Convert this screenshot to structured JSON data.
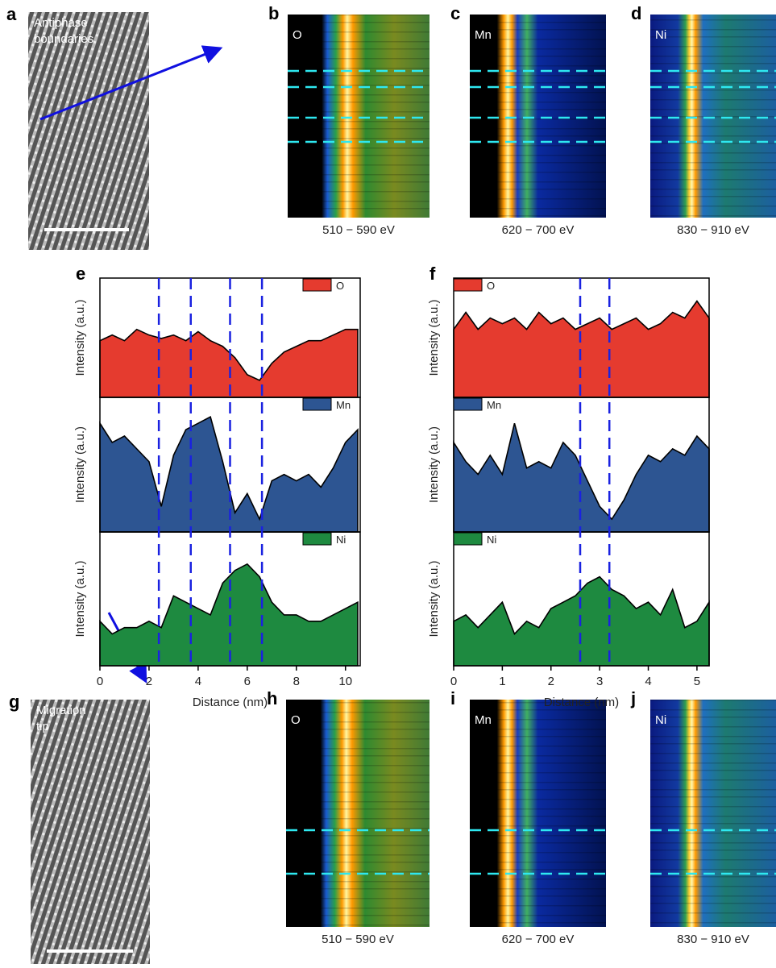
{
  "images": [
    {
      "label": "a",
      "caption": [
        "Antiphase",
        "boundaries"
      ]
    },
    {
      "label": "g",
      "caption": [
        "Migration",
        "tip"
      ]
    }
  ],
  "maps": [
    {
      "label": "b",
      "element": "O",
      "energy": "510 − 590 eV"
    },
    {
      "label": "c",
      "element": "Mn",
      "energy": "620 − 700 eV"
    },
    {
      "label": "d",
      "element": "Ni",
      "energy": "830 − 910 eV"
    },
    {
      "label": "h",
      "element": "O",
      "energy": "510 − 590 eV"
    },
    {
      "label": "i",
      "element": "Mn",
      "energy": "620 − 700 eV"
    },
    {
      "label": "j",
      "element": "Ni",
      "energy": "830 − 910 eV"
    }
  ],
  "chart_data": [
    {
      "type": "area",
      "label": "e",
      "xlabel": "Distance (nm)",
      "ylabel": "Intensity (a.u.)",
      "x": [
        0,
        0.5,
        1,
        1.5,
        2,
        2.5,
        3,
        3.5,
        4,
        4.5,
        5,
        5.5,
        6,
        6.5,
        7,
        7.5,
        8,
        8.5,
        9,
        9.5,
        10,
        10.5
      ],
      "xlim": [
        0,
        10.6
      ],
      "xticks": [
        0,
        2,
        4,
        6,
        8,
        10
      ],
      "ylim": [
        0,
        1
      ],
      "legend": "top-right",
      "regions": [
        [
          2.4,
          3.7
        ],
        [
          5.3,
          6.6
        ]
      ],
      "series": [
        {
          "name": "O",
          "color": "#e53b2f",
          "values": [
            0.5,
            0.55,
            0.5,
            0.6,
            0.55,
            0.52,
            0.55,
            0.5,
            0.58,
            0.5,
            0.45,
            0.35,
            0.2,
            0.15,
            0.3,
            0.4,
            0.45,
            0.5,
            0.5,
            0.55,
            0.6,
            0.6
          ]
        },
        {
          "name": "Mn",
          "color": "#2d5592",
          "values": [
            0.85,
            0.7,
            0.75,
            0.65,
            0.55,
            0.2,
            0.6,
            0.8,
            0.85,
            0.9,
            0.55,
            0.15,
            0.3,
            0.1,
            0.4,
            0.45,
            0.4,
            0.45,
            0.35,
            0.5,
            0.7,
            0.8
          ]
        },
        {
          "name": "Ni",
          "color": "#1e8a40",
          "values": [
            0.35,
            0.25,
            0.3,
            0.3,
            0.35,
            0.3,
            0.55,
            0.5,
            0.45,
            0.4,
            0.65,
            0.75,
            0.8,
            0.7,
            0.5,
            0.4,
            0.4,
            0.35,
            0.35,
            0.4,
            0.45,
            0.5
          ]
        }
      ]
    },
    {
      "type": "area",
      "label": "f",
      "xlabel": "Distance (nm)",
      "ylabel": "Intensity (a.u.)",
      "x": [
        0,
        0.25,
        0.5,
        0.75,
        1,
        1.25,
        1.5,
        1.75,
        2,
        2.25,
        2.5,
        2.75,
        3,
        3.25,
        3.5,
        3.75,
        4,
        4.25,
        4.5,
        4.75,
        5,
        5.25
      ],
      "xlim": [
        0,
        5.25
      ],
      "xticks": [
        0,
        1,
        2,
        3,
        4,
        5
      ],
      "ylim": [
        0,
        1
      ],
      "legend": "top-left",
      "regions": [
        [
          2.6,
          3.2
        ]
      ],
      "series": [
        {
          "name": "O",
          "color": "#e53b2f",
          "values": [
            0.6,
            0.75,
            0.6,
            0.7,
            0.65,
            0.7,
            0.6,
            0.75,
            0.65,
            0.7,
            0.6,
            0.65,
            0.7,
            0.6,
            0.65,
            0.7,
            0.6,
            0.65,
            0.75,
            0.7,
            0.85,
            0.7
          ]
        },
        {
          "name": "Mn",
          "color": "#2d5592",
          "values": [
            0.7,
            0.55,
            0.45,
            0.6,
            0.45,
            0.85,
            0.5,
            0.55,
            0.5,
            0.7,
            0.6,
            0.4,
            0.2,
            0.1,
            0.25,
            0.45,
            0.6,
            0.55,
            0.65,
            0.6,
            0.75,
            0.65
          ]
        },
        {
          "name": "Ni",
          "color": "#1e8a40",
          "values": [
            0.35,
            0.4,
            0.3,
            0.4,
            0.5,
            0.25,
            0.35,
            0.3,
            0.45,
            0.5,
            0.55,
            0.65,
            0.7,
            0.6,
            0.55,
            0.45,
            0.5,
            0.4,
            0.6,
            0.3,
            0.35,
            0.5
          ]
        }
      ]
    }
  ]
}
